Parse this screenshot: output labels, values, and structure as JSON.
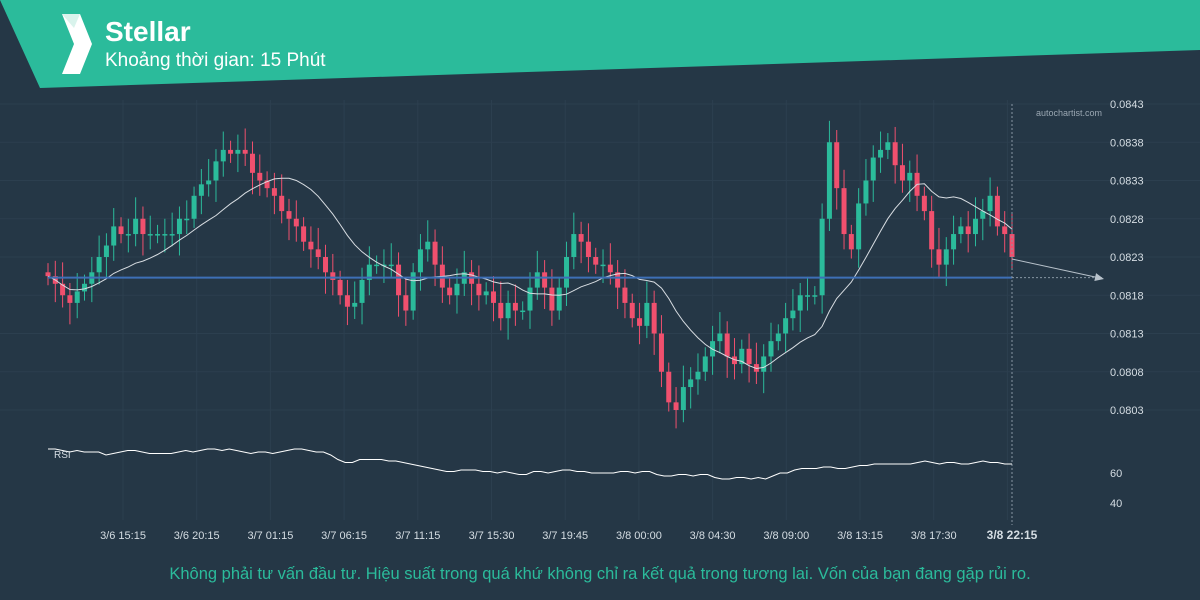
{
  "header": {
    "title": "Stellar",
    "subtitle": "Khoảng thời gian: 15 Phút",
    "accent_color": "#2bbb9b",
    "logo_icon": "autochartist-logo-icon"
  },
  "watermark": "autochartist.com",
  "footer": {
    "disclaimer": "Không phải tư vấn đầu tư. Hiệu suất trong quá khứ không chỉ ra kết quả trong tương lai. Vốn của bạn đang gặp rủi ro."
  },
  "chart_data": {
    "type": "candlestick",
    "x_tick_labels": [
      "3/6 15:15",
      "3/6 20:15",
      "3/7 01:15",
      "3/7 06:15",
      "3/7 11:15",
      "3/7 15:30",
      "3/7 19:45",
      "3/8 00:00",
      "3/8 04:30",
      "3/8 09:00",
      "3/8 13:15",
      "3/8 17:30",
      "3/8 22:15"
    ],
    "y_ticks": [
      0.0803,
      0.0808,
      0.0813,
      0.0818,
      0.0823,
      0.0828,
      0.0833,
      0.0838,
      0.0843
    ],
    "ylim": [
      0.08,
      0.0844
    ],
    "support_level": 0.08203,
    "up_color": "#2bbb9b",
    "down_color": "#f0506e",
    "level_color": "#3d6fb6",
    "close_series": [
      0.08205,
      0.08195,
      0.0818,
      0.0817,
      0.08185,
      0.08195,
      0.0821,
      0.0823,
      0.08245,
      0.0827,
      0.0826,
      0.0826,
      0.0828,
      0.0826,
      0.0826,
      0.0826,
      0.0826,
      0.0826,
      0.0828,
      0.0828,
      0.0831,
      0.08325,
      0.0833,
      0.08355,
      0.0837,
      0.08365,
      0.0837,
      0.08365,
      0.0834,
      0.0833,
      0.0832,
      0.0831,
      0.0829,
      0.0828,
      0.0827,
      0.0825,
      0.0824,
      0.0823,
      0.0821,
      0.082,
      0.0818,
      0.08165,
      0.0817,
      0.082,
      0.0822,
      0.0822,
      0.0822,
      0.0822,
      0.0818,
      0.0816,
      0.0821,
      0.0824,
      0.0825,
      0.0822,
      0.0819,
      0.0818,
      0.08195,
      0.0821,
      0.08195,
      0.0818,
      0.08185,
      0.0817,
      0.0815,
      0.0817,
      0.0816,
      0.0816,
      0.0819,
      0.0821,
      0.0819,
      0.0816,
      0.0819,
      0.0823,
      0.0826,
      0.0825,
      0.0823,
      0.0822,
      0.0822,
      0.0821,
      0.0819,
      0.0817,
      0.0815,
      0.0814,
      0.0817,
      0.0813,
      0.0808,
      0.0804,
      0.0803,
      0.0806,
      0.0807,
      0.0808,
      0.081,
      0.0812,
      0.0813,
      0.081,
      0.0809,
      0.0811,
      0.0809,
      0.0808,
      0.081,
      0.0812,
      0.0813,
      0.0815,
      0.0816,
      0.0818,
      0.0818,
      0.0818,
      0.0828,
      0.0838,
      0.0832,
      0.0826,
      0.0824,
      0.083,
      0.0833,
      0.0836,
      0.0837,
      0.0838,
      0.0835,
      0.0833,
      0.0834,
      0.0831,
      0.0829,
      0.0824,
      0.0822,
      0.0824,
      0.0826,
      0.0827,
      0.0826,
      0.0828,
      0.0829,
      0.0831,
      0.0827,
      0.0826,
      0.0823
    ],
    "rsi_label": "RSI",
    "rsi_ticks": [
      60,
      40
    ],
    "rsi_series": [
      76,
      76,
      75,
      74,
      75,
      74,
      74,
      74,
      72,
      73,
      74,
      75,
      75,
      74,
      73,
      73,
      73,
      73,
      74,
      75,
      74,
      75,
      76,
      76,
      75,
      76,
      75,
      74,
      73,
      74,
      74,
      73,
      74,
      75,
      76,
      76,
      75,
      74,
      74,
      72,
      69,
      67,
      67,
      69,
      69,
      69,
      69,
      68,
      68,
      67,
      66,
      65,
      64,
      63,
      62,
      61,
      61,
      62,
      62,
      62,
      61,
      61,
      60,
      61,
      60,
      59,
      59,
      61,
      61,
      60,
      61,
      62,
      62,
      61,
      61,
      60,
      60,
      60,
      60,
      61,
      61,
      60,
      61,
      61,
      59,
      58,
      58,
      59,
      59,
      58,
      59,
      59,
      57,
      56,
      56,
      57,
      57,
      56,
      57,
      56,
      58,
      60,
      60,
      62,
      63,
      63,
      63,
      64,
      64,
      63,
      63,
      64,
      65,
      65,
      66,
      66,
      66,
      66,
      66,
      66,
      67,
      68,
      67,
      66,
      67,
      67,
      66,
      66,
      67,
      68,
      67,
      67,
      66,
      66
    ]
  }
}
